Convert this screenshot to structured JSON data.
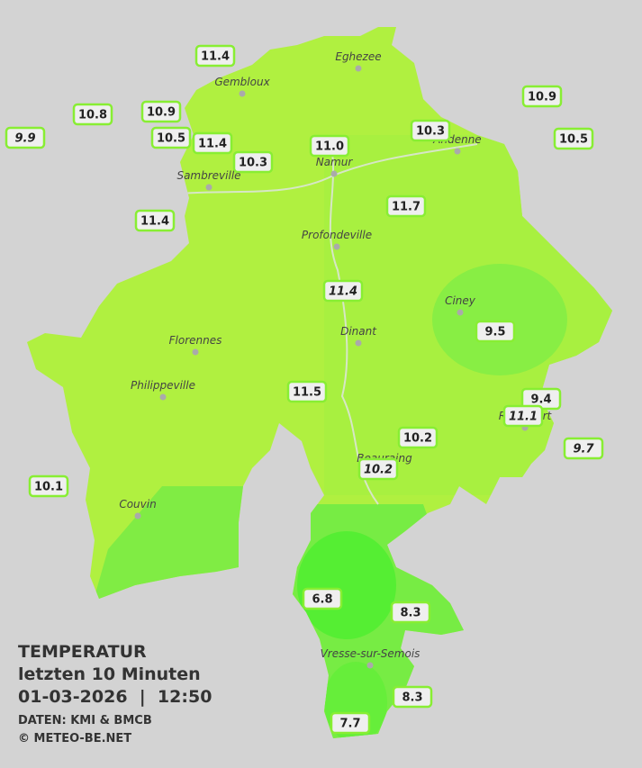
{
  "title": "TEMPERATUR",
  "subtitle": "letzten 10 Minuten",
  "timestamp": "01-03-2026  |  12:50",
  "source": "DATEN: KMI & BMCB",
  "copyright": "© METEO-BE.NET",
  "cities": [
    "Eghezee",
    "Gembloux",
    "Andenne",
    "Namur",
    "Sambreville",
    "Profondeville",
    "Ciney",
    "Dinant",
    "Florennes",
    "Philippeville",
    "Rochefort",
    "Beauraing",
    "Couvin",
    "Vresse-sur-Semois"
  ],
  "stations": [
    {
      "value": "11.4"
    },
    {
      "value": "10.8"
    },
    {
      "value": "10.9"
    },
    {
      "value": "9.9",
      "italic": true
    },
    {
      "value": "10.5"
    },
    {
      "value": "11.4"
    },
    {
      "value": "10.3"
    },
    {
      "value": "11.0"
    },
    {
      "value": "10.3"
    },
    {
      "value": "10.9"
    },
    {
      "value": "10.5"
    },
    {
      "value": "11.4"
    },
    {
      "value": "11.7"
    },
    {
      "value": "11.4",
      "italic": true
    },
    {
      "value": "9.5"
    },
    {
      "value": "11.5"
    },
    {
      "value": "9.4"
    },
    {
      "value": "11.1",
      "italic": true
    },
    {
      "value": "9.7",
      "italic": true
    },
    {
      "value": "10.2"
    },
    {
      "value": "10.2",
      "italic": true
    },
    {
      "value": "10.1"
    },
    {
      "value": "6.8"
    },
    {
      "value": "8.3"
    },
    {
      "value": "8.3"
    },
    {
      "value": "7.7"
    }
  ]
}
